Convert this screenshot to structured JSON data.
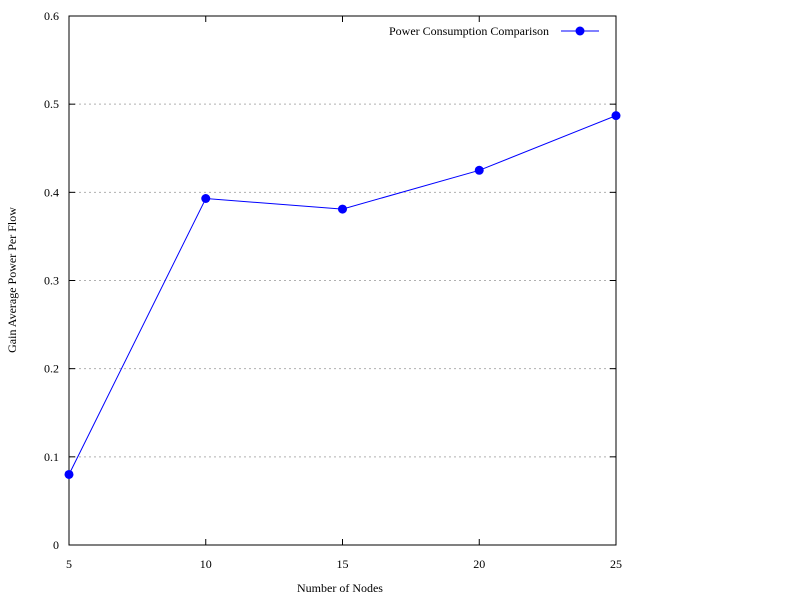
{
  "chart_data": {
    "type": "line",
    "xlabel": "Number of Nodes",
    "ylabel": "Gain Average Power Per Flow",
    "xlim": [
      5,
      25
    ],
    "ylim": [
      0,
      0.6
    ],
    "xticks": [
      5,
      10,
      15,
      20,
      25
    ],
    "yticks": [
      0,
      0.1,
      0.2,
      0.3,
      0.4,
      0.5,
      0.6
    ],
    "xtick_labels": [
      "5",
      "10",
      "15",
      "20",
      "25"
    ],
    "ytick_labels": [
      "0",
      "0.1",
      "0.2",
      "0.3",
      "0.4",
      "0.5",
      "0.6"
    ],
    "grid": "horizontal dotted",
    "legend_position": "top-right",
    "series": [
      {
        "name": "Power Consumption Comparison",
        "color": "#0000ff",
        "marker": "circle",
        "x": [
          5,
          10,
          15,
          20,
          25
        ],
        "y": [
          0.08,
          0.393,
          0.381,
          0.425,
          0.487
        ]
      }
    ]
  }
}
